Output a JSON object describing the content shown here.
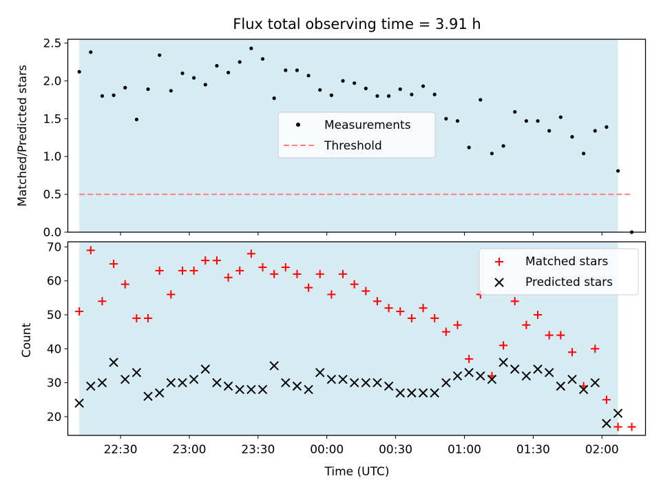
{
  "chart_data": [
    {
      "type": "scatter",
      "title": "Flux total observing time = 3.91 h",
      "ylabel": "Matched/Predicted stars",
      "xlim": [
        "22:07",
        "02:19"
      ],
      "ylim": [
        0,
        2.55
      ],
      "yticks": [
        "0.0",
        "0.5",
        "1.0",
        "1.5",
        "2.0",
        "2.5"
      ],
      "observing_window": [
        "22:12",
        "02:07"
      ],
      "window_color": "#add8e6",
      "legend": {
        "position": "center",
        "entries": [
          "Measurements",
          "Threshold"
        ]
      },
      "series": [
        {
          "name": "Measurements",
          "marker": "dot",
          "color": "#000000",
          "x": [
            "22:12",
            "22:17",
            "22:22",
            "22:27",
            "22:32",
            "22:37",
            "22:42",
            "22:47",
            "22:52",
            "22:57",
            "23:02",
            "23:07",
            "23:12",
            "23:17",
            "23:22",
            "23:27",
            "23:32",
            "23:37",
            "23:42",
            "23:47",
            "23:52",
            "23:57",
            "24:02",
            "24:07",
            "24:12",
            "24:17",
            "24:22",
            "24:27",
            "24:32",
            "24:37",
            "24:42",
            "24:47",
            "24:52",
            "24:57",
            "25:02",
            "25:07",
            "25:12",
            "25:17",
            "25:22",
            "25:27",
            "25:32",
            "25:37",
            "25:42",
            "25:47",
            "25:52",
            "25:57",
            "26:02",
            "26:07",
            "26:13"
          ],
          "y": [
            2.12,
            2.38,
            1.8,
            1.81,
            1.91,
            1.49,
            1.89,
            2.34,
            1.87,
            2.1,
            2.04,
            1.95,
            2.2,
            2.11,
            2.25,
            2.43,
            2.29,
            1.77,
            2.14,
            2.14,
            2.07,
            1.88,
            1.81,
            2.0,
            1.97,
            1.9,
            1.8,
            1.8,
            1.89,
            1.82,
            1.93,
            1.82,
            1.5,
            1.47,
            1.12,
            1.75,
            1.04,
            1.14,
            1.59,
            1.47,
            1.47,
            1.34,
            1.52,
            1.26,
            1.04,
            1.34,
            1.39,
            0.81,
            0.0
          ]
        },
        {
          "name": "Threshold",
          "marker": "dashed-line",
          "color": "#ff7f7f",
          "x": [
            "22:12",
            "26:13"
          ],
          "y": [
            0.5,
            0.5
          ]
        }
      ]
    },
    {
      "type": "scatter",
      "xlabel": "Time (UTC)",
      "ylabel": "Count",
      "xlim": [
        "22:07",
        "02:19"
      ],
      "ylim": [
        14.5,
        71.5
      ],
      "yticks": [
        "20",
        "30",
        "40",
        "50",
        "60",
        "70"
      ],
      "xticks": [
        "22:30",
        "23:00",
        "23:30",
        "00:00",
        "00:30",
        "01:00",
        "01:30",
        "02:00"
      ],
      "observing_window": [
        "22:12",
        "02:07"
      ],
      "window_color": "#add8e6",
      "legend": {
        "position": "top-right",
        "entries": [
          "Matched stars",
          "Predicted stars"
        ]
      },
      "series": [
        {
          "name": "Matched stars",
          "marker": "plus",
          "color": "#ff0000",
          "x": [
            "22:12",
            "22:17",
            "22:22",
            "22:27",
            "22:32",
            "22:37",
            "22:42",
            "22:47",
            "22:52",
            "22:57",
            "23:02",
            "23:07",
            "23:12",
            "23:17",
            "23:22",
            "23:27",
            "23:32",
            "23:37",
            "23:42",
            "23:47",
            "23:52",
            "23:57",
            "24:02",
            "24:07",
            "24:12",
            "24:17",
            "24:22",
            "24:27",
            "24:32",
            "24:37",
            "24:42",
            "24:47",
            "24:52",
            "24:57",
            "25:02",
            "25:07",
            "25:12",
            "25:17",
            "25:22",
            "25:27",
            "25:32",
            "25:37",
            "25:42",
            "25:47",
            "25:52",
            "25:57",
            "26:02",
            "26:07",
            "26:13"
          ],
          "y": [
            51,
            69,
            54,
            65,
            59,
            49,
            49,
            63,
            56,
            63,
            63,
            66,
            66,
            61,
            63,
            68,
            64,
            62,
            64,
            62,
            58,
            62,
            56,
            62,
            59,
            57,
            54,
            52,
            51,
            49,
            52,
            49,
            45,
            47,
            37,
            56,
            32,
            41,
            54,
            47,
            50,
            44,
            44,
            39,
            29,
            40,
            25,
            17,
            17
          ]
        },
        {
          "name": "Predicted stars",
          "marker": "x",
          "color": "#000000",
          "x": [
            "22:12",
            "22:17",
            "22:22",
            "22:27",
            "22:32",
            "22:37",
            "22:42",
            "22:47",
            "22:52",
            "22:57",
            "23:02",
            "23:07",
            "23:12",
            "23:17",
            "23:22",
            "23:27",
            "23:32",
            "23:37",
            "23:42",
            "23:47",
            "23:52",
            "23:57",
            "24:02",
            "24:07",
            "24:12",
            "24:17",
            "24:22",
            "24:27",
            "24:32",
            "24:37",
            "24:42",
            "24:47",
            "24:52",
            "24:57",
            "25:02",
            "25:07",
            "25:12",
            "25:17",
            "25:22",
            "25:27",
            "25:32",
            "25:37",
            "25:42",
            "25:47",
            "25:52",
            "25:57",
            "26:02",
            "26:07"
          ],
          "y": [
            24,
            29,
            30,
            36,
            31,
            33,
            26,
            27,
            30,
            30,
            31,
            34,
            30,
            29,
            28,
            28,
            28,
            35,
            30,
            29,
            28,
            33,
            31,
            31,
            30,
            30,
            30,
            29,
            27,
            27,
            27,
            27,
            30,
            32,
            33,
            32,
            31,
            36,
            34,
            32,
            34,
            33,
            29,
            31,
            28,
            30,
            18,
            21
          ]
        }
      ]
    }
  ]
}
